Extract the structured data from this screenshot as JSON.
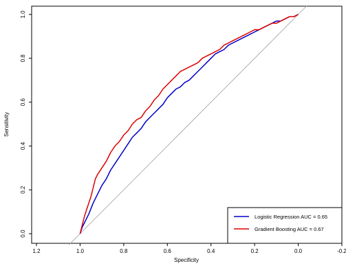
{
  "chart_data": {
    "type": "line",
    "title": "",
    "xlabel": "Specificity",
    "ylabel": "Sensitivity",
    "xlim": [
      1.2,
      -0.2
    ],
    "ylim": [
      0,
      1
    ],
    "x_reversed": true,
    "xticks": [
      1.2,
      1.0,
      0.8,
      0.6,
      0.4,
      0.2,
      0.0,
      -0.2
    ],
    "xtick_labels": [
      "1.2",
      "1.0",
      "0.8",
      "0.6",
      "0.4",
      "0.2",
      "0.0",
      "-0.2"
    ],
    "yticks": [
      0.0,
      0.2,
      0.4,
      0.6,
      0.8,
      1.0
    ],
    "ytick_labels": [
      "0.0",
      "0.2",
      "0.4",
      "0.6",
      "0.8",
      "1.0"
    ],
    "grid": false,
    "legend_position": "bottom-right",
    "reference_line": {
      "from": [
        1.0,
        0.0
      ],
      "to": [
        0.0,
        1.0
      ],
      "color": "#a0a0a0"
    },
    "series": [
      {
        "name": "Logistic Regression AUC =  0.65",
        "color": "#0000cc",
        "x": [
          1.0,
          0.99,
          0.98,
          0.96,
          0.94,
          0.92,
          0.9,
          0.88,
          0.86,
          0.84,
          0.82,
          0.8,
          0.78,
          0.76,
          0.74,
          0.72,
          0.7,
          0.68,
          0.66,
          0.64,
          0.62,
          0.6,
          0.58,
          0.56,
          0.54,
          0.52,
          0.5,
          0.48,
          0.46,
          0.44,
          0.42,
          0.4,
          0.38,
          0.36,
          0.34,
          0.32,
          0.3,
          0.28,
          0.26,
          0.24,
          0.22,
          0.2,
          0.18,
          0.16,
          0.14,
          0.12,
          0.1,
          0.08,
          0.06,
          0.04,
          0.02,
          0.0
        ],
        "y": [
          0.0,
          0.03,
          0.05,
          0.09,
          0.14,
          0.18,
          0.22,
          0.25,
          0.29,
          0.32,
          0.35,
          0.38,
          0.41,
          0.44,
          0.46,
          0.48,
          0.51,
          0.53,
          0.55,
          0.57,
          0.59,
          0.62,
          0.64,
          0.66,
          0.67,
          0.69,
          0.7,
          0.72,
          0.74,
          0.76,
          0.78,
          0.8,
          0.82,
          0.83,
          0.84,
          0.86,
          0.87,
          0.88,
          0.89,
          0.9,
          0.91,
          0.92,
          0.93,
          0.94,
          0.95,
          0.96,
          0.97,
          0.97,
          0.98,
          0.99,
          0.99,
          1.0
        ]
      },
      {
        "name": "Gradient Boosting AUC =  0.67",
        "color": "#dd0000",
        "x": [
          1.0,
          0.99,
          0.98,
          0.97,
          0.96,
          0.95,
          0.94,
          0.93,
          0.92,
          0.9,
          0.88,
          0.86,
          0.84,
          0.82,
          0.8,
          0.78,
          0.76,
          0.74,
          0.72,
          0.7,
          0.68,
          0.66,
          0.64,
          0.62,
          0.6,
          0.58,
          0.56,
          0.54,
          0.52,
          0.5,
          0.48,
          0.46,
          0.44,
          0.42,
          0.4,
          0.38,
          0.36,
          0.34,
          0.32,
          0.3,
          0.28,
          0.26,
          0.24,
          0.22,
          0.2,
          0.18,
          0.16,
          0.14,
          0.12,
          0.1,
          0.08,
          0.06,
          0.04,
          0.02,
          0.0
        ],
        "y": [
          0.0,
          0.04,
          0.08,
          0.11,
          0.14,
          0.17,
          0.21,
          0.25,
          0.27,
          0.3,
          0.33,
          0.37,
          0.4,
          0.42,
          0.45,
          0.47,
          0.5,
          0.52,
          0.53,
          0.56,
          0.58,
          0.61,
          0.63,
          0.66,
          0.68,
          0.7,
          0.72,
          0.74,
          0.75,
          0.76,
          0.77,
          0.78,
          0.8,
          0.81,
          0.82,
          0.83,
          0.84,
          0.86,
          0.87,
          0.88,
          0.89,
          0.9,
          0.91,
          0.92,
          0.93,
          0.93,
          0.94,
          0.95,
          0.96,
          0.96,
          0.97,
          0.98,
          0.99,
          0.99,
          1.0
        ]
      }
    ]
  }
}
